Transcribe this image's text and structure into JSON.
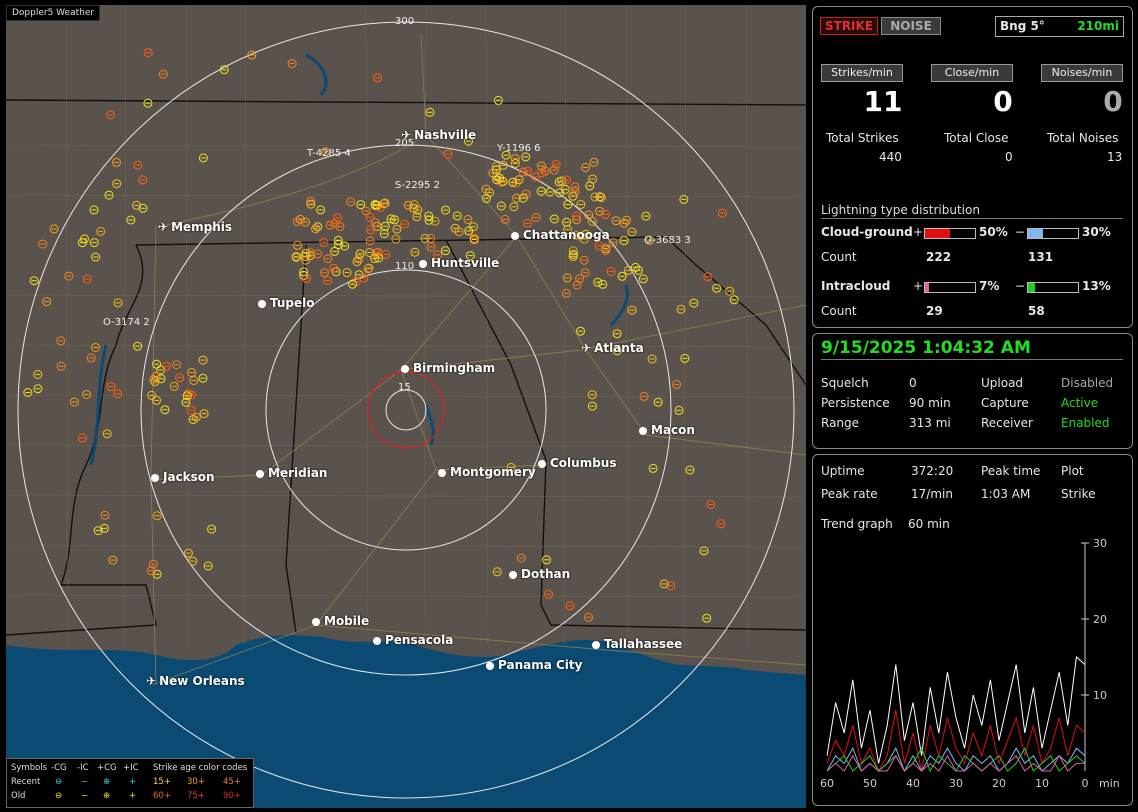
{
  "app": {
    "title": "Doppler5 Weather"
  },
  "map": {
    "ring_labels": [
      "300",
      "205",
      "110",
      "15"
    ],
    "cities": [
      {
        "name": "Nashville",
        "type": "airport"
      },
      {
        "name": "Memphis",
        "type": "airport"
      },
      {
        "name": "Chattanooga",
        "type": "dot"
      },
      {
        "name": "Huntsville",
        "type": "dot"
      },
      {
        "name": "Tupelo",
        "type": "dot"
      },
      {
        "name": "Atlanta",
        "type": "airport"
      },
      {
        "name": "Birmingham",
        "type": "dot"
      },
      {
        "name": "Macon",
        "type": "dot"
      },
      {
        "name": "Jackson",
        "type": "dot"
      },
      {
        "name": "Meridian",
        "type": "dot"
      },
      {
        "name": "Montgomery",
        "type": "dot"
      },
      {
        "name": "Columbus",
        "type": "dot"
      },
      {
        "name": "Dothan",
        "type": "dot"
      },
      {
        "name": "Mobile",
        "type": "dot"
      },
      {
        "name": "Pensacola",
        "type": "dot"
      },
      {
        "name": "Tallahassee",
        "type": "dot"
      },
      {
        "name": "Panama City",
        "type": "dot"
      },
      {
        "name": "New Orleans",
        "type": "airport"
      }
    ],
    "storm_tags": [
      "T-4285 4",
      "Y-1196 6",
      "S-2295 2",
      "O-3683 3",
      "O-3174 2"
    ],
    "legend": {
      "symbols_label": "Symbols",
      "col_headers": [
        "-CG",
        "-IC",
        "+CG",
        "+IC"
      ],
      "age_title": "Strike age color codes",
      "recent_label": "Recent",
      "old_label": "Old",
      "recent_ages": [
        "15+",
        "30+",
        "45+"
      ],
      "old_ages": [
        "60+",
        "75+",
        "90+"
      ],
      "symbol_glyphs": [
        "⊖",
        "−",
        "⊕",
        "+"
      ]
    }
  },
  "header": {
    "strike_btn": "STRIKE",
    "noise_btn": "NOISE",
    "bearing": "Bng 5°",
    "range_readout": "210mi"
  },
  "rates": {
    "strikes_label": "Strikes/min",
    "close_label": "Close/min",
    "noises_label": "Noises/min",
    "strikes_value": "11",
    "close_value": "0",
    "noises_value": "0",
    "total_strikes_label": "Total Strikes",
    "total_close_label": "Total Close",
    "total_noises_label": "Total Noises",
    "total_strikes": "440",
    "total_close": "0",
    "total_noises": "13"
  },
  "distribution": {
    "title": "Lightning type distribution",
    "cg_label": "Cloud-ground",
    "ic_label": "Intracloud",
    "count_label": "Count",
    "plus": "+",
    "minus": "−",
    "cg_pos_pct": "50%",
    "cg_neg_pct": "30%",
    "cg_pos_count": "222",
    "cg_neg_count": "131",
    "ic_pos_pct": "7%",
    "ic_neg_pct": "13%",
    "ic_pos_count": "29",
    "ic_neg_count": "58",
    "fill": {
      "cg_pos": 0.5,
      "cg_neg": 0.3,
      "ic_pos": 0.07,
      "ic_neg": 0.13
    },
    "colors": {
      "cg_pos": "#e01010",
      "cg_neg": "#7fb6ee",
      "ic_pos": "#e060a0",
      "ic_neg": "#20d020"
    }
  },
  "status": {
    "datetime": "9/15/2025 1:04:32 AM",
    "squelch_label": "Squelch",
    "squelch": "0",
    "persistence_label": "Persistence",
    "persistence": "90 min",
    "range_label": "Range",
    "range": "313 mi",
    "upload_label": "Upload",
    "upload": "Disabled",
    "capture_label": "Capture",
    "capture": "Active",
    "receiver_label": "Receiver",
    "receiver": "Enabled"
  },
  "stats": {
    "uptime_label": "Uptime",
    "uptime": "372:20",
    "peak_time_label": "Peak time",
    "peak_time": "1:03 AM",
    "plot_label": "Plot",
    "plot": "Strike",
    "peak_rate_label": "Peak rate",
    "peak_rate": "17/min",
    "trend_label": "Trend graph",
    "trend": "60 min"
  },
  "chart_data": {
    "type": "line",
    "x": [
      60,
      58,
      56,
      54,
      52,
      50,
      48,
      46,
      44,
      42,
      40,
      38,
      36,
      34,
      32,
      30,
      28,
      26,
      24,
      22,
      20,
      18,
      16,
      14,
      12,
      10,
      8,
      6,
      4,
      2,
      0
    ],
    "xlabel": "min",
    "x_ticks": [
      "60",
      "50",
      "40",
      "30",
      "20",
      "10",
      "0"
    ],
    "y_ticks": [
      "30",
      "20",
      "10"
    ],
    "ylim": [
      0,
      30
    ],
    "xlim": [
      60,
      0
    ],
    "series": [
      {
        "color": "#ffffff",
        "values": [
          2,
          9,
          5,
          12,
          3,
          8,
          1,
          6,
          14,
          4,
          9,
          2,
          11,
          5,
          13,
          7,
          3,
          10,
          6,
          12,
          4,
          9,
          14,
          5,
          11,
          3,
          8,
          13,
          6,
          15,
          14
        ]
      },
      {
        "color": "#e01010",
        "values": [
          1,
          4,
          2,
          6,
          1,
          3,
          0,
          2,
          8,
          1,
          5,
          0,
          6,
          2,
          7,
          3,
          1,
          5,
          2,
          6,
          1,
          4,
          7,
          2,
          6,
          1,
          3,
          7,
          2,
          6,
          5
        ]
      },
      {
        "color": "#7fb6ee",
        "values": [
          0,
          2,
          1,
          3,
          0,
          1,
          0,
          1,
          3,
          0,
          2,
          0,
          2,
          1,
          3,
          1,
          0,
          2,
          1,
          2,
          0,
          1,
          3,
          1,
          2,
          0,
          1,
          2,
          1,
          3,
          2
        ]
      },
      {
        "color": "#20d020",
        "values": [
          0,
          1,
          2,
          0,
          1,
          2,
          0,
          1,
          2,
          0,
          1,
          3,
          0,
          2,
          1,
          0,
          2,
          1,
          0,
          1,
          2,
          0,
          1,
          3,
          0,
          1,
          2,
          0,
          1,
          2,
          1
        ]
      },
      {
        "color": "#e060a0",
        "values": [
          0,
          1,
          0,
          2,
          0,
          1,
          0,
          0,
          2,
          0,
          1,
          0,
          1,
          0,
          2,
          0,
          0,
          1,
          0,
          1,
          0,
          1,
          2,
          0,
          1,
          0,
          0,
          2,
          0,
          1,
          1
        ]
      }
    ]
  }
}
